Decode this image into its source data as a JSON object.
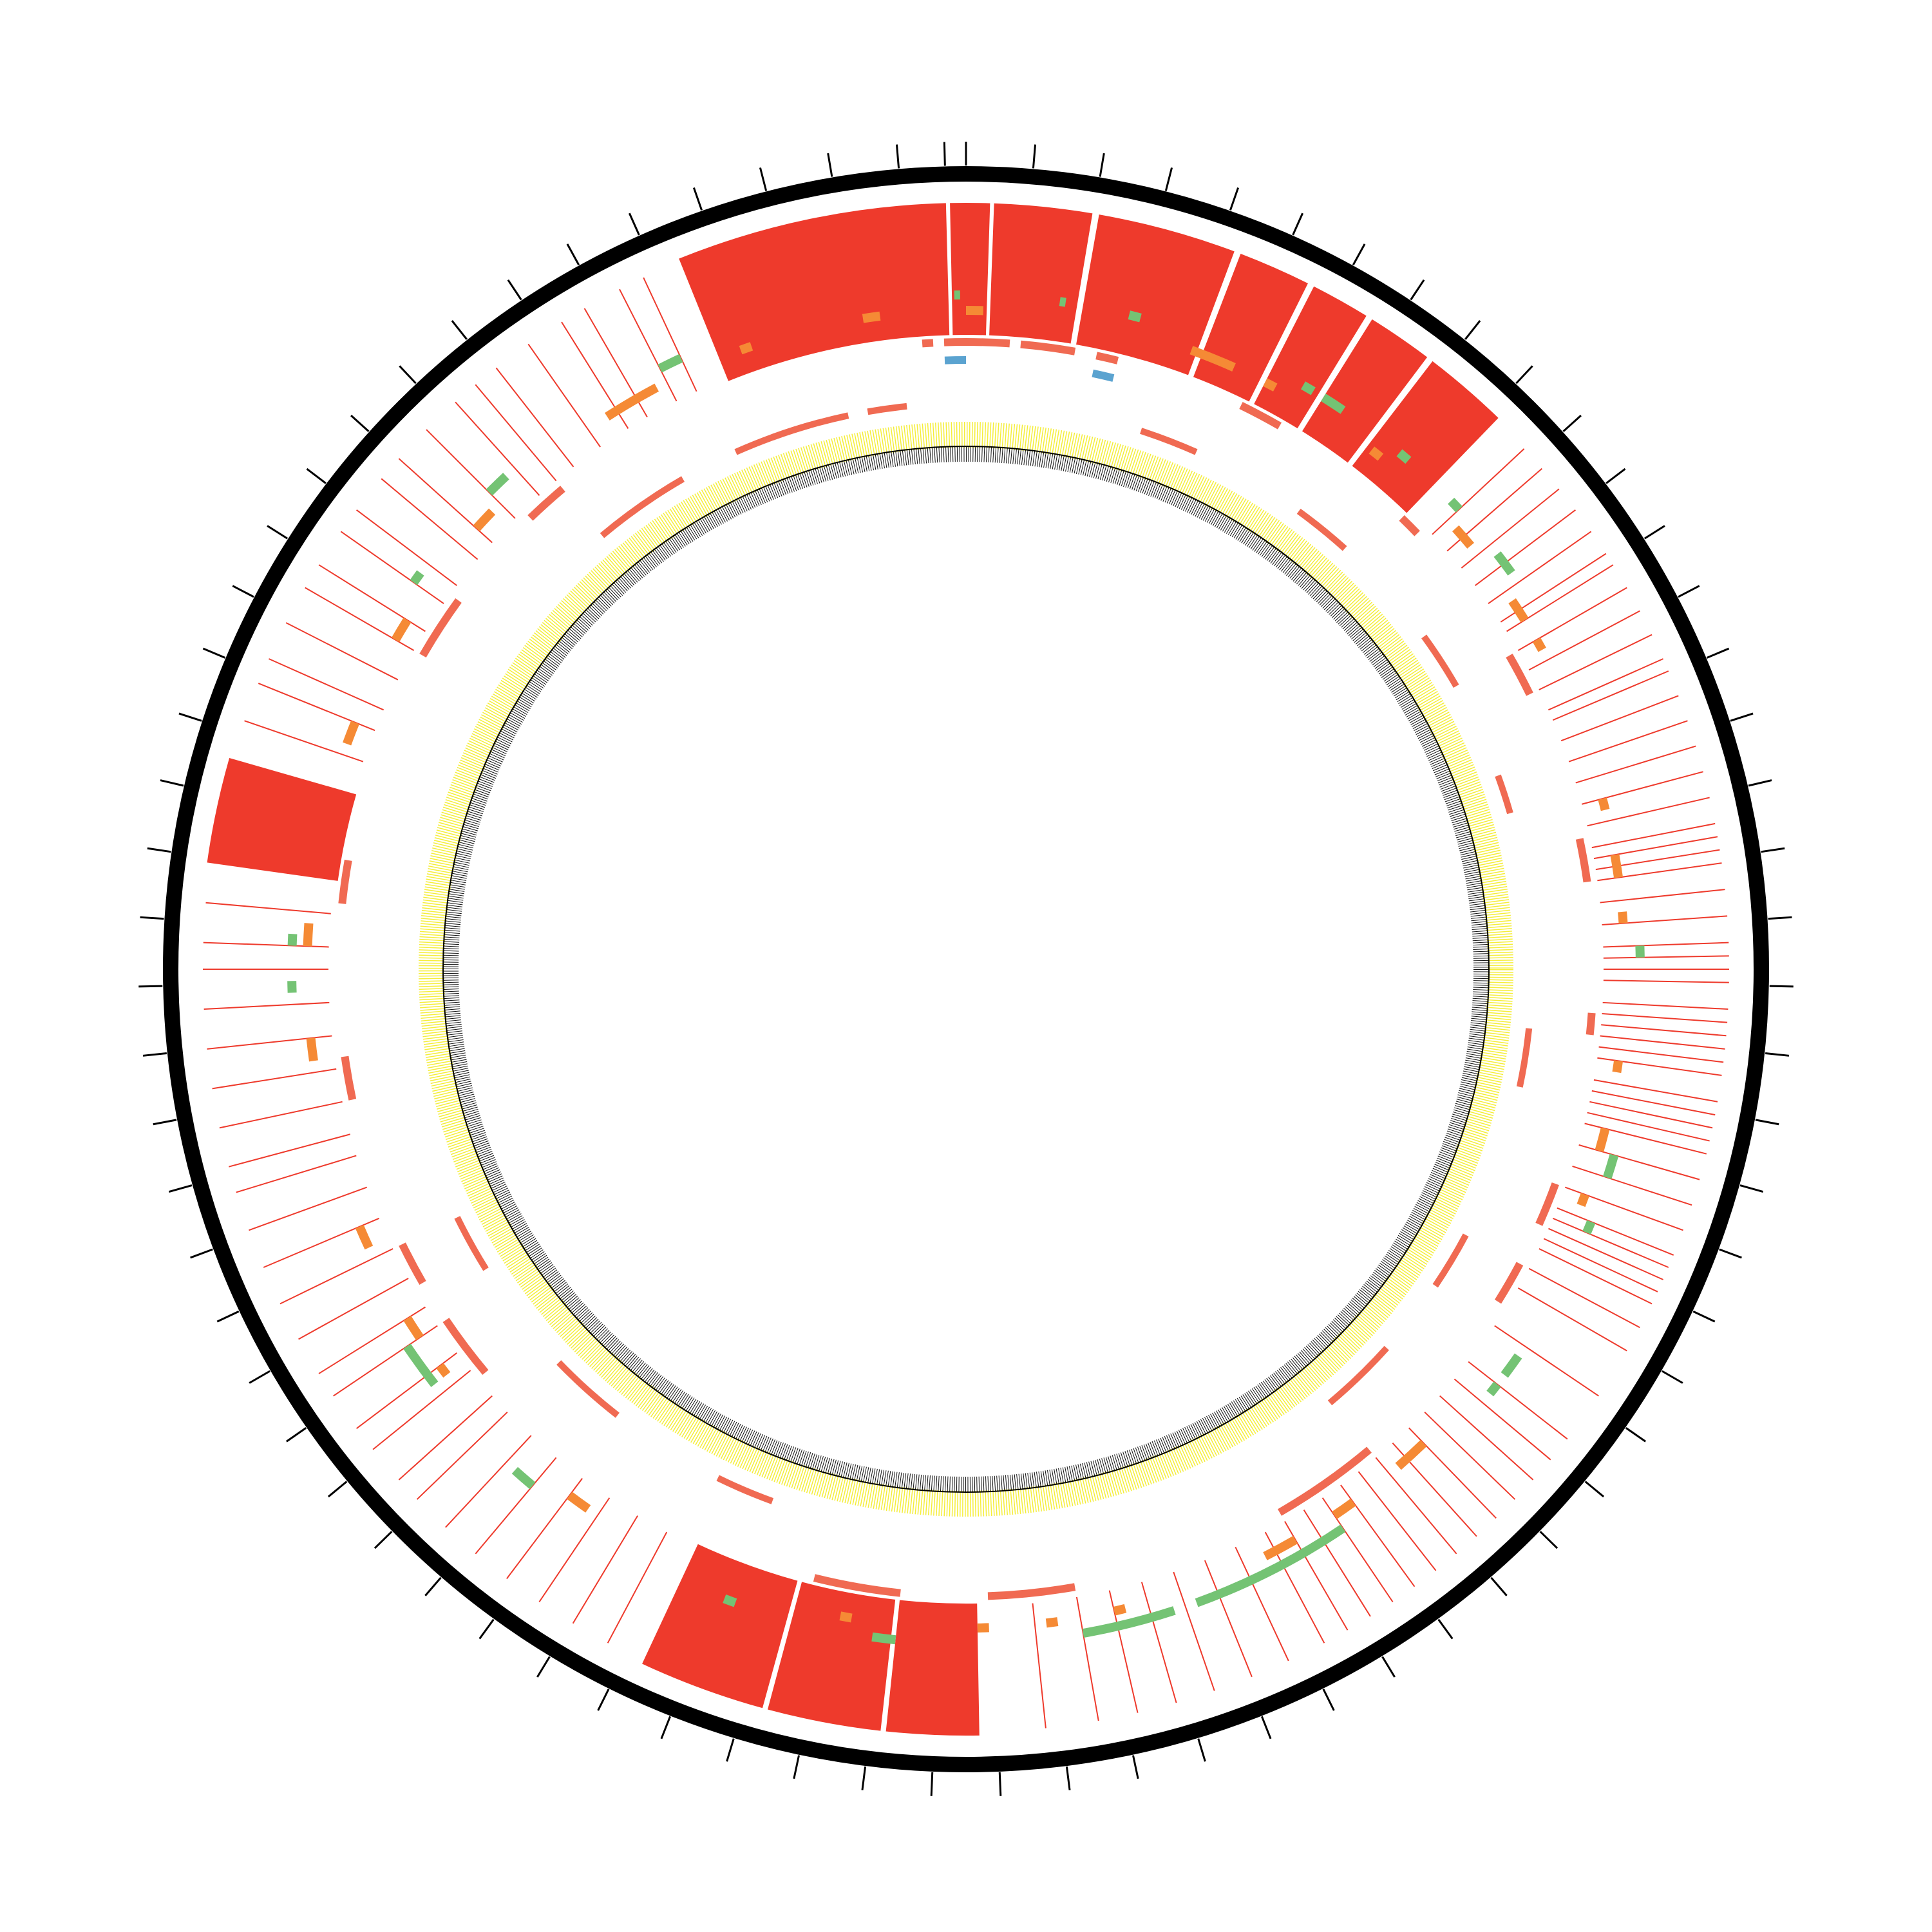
{
  "chart_data": {
    "type": "circos",
    "ideogram_color": "#000000",
    "ticks": [
      -1.5,
      0,
      4.8,
      9.6,
      14.4,
      19.2,
      24,
      28.8,
      33.6,
      38.4,
      43.2,
      48,
      52.8,
      57.6,
      62.4,
      67.2,
      72,
      76.8,
      81.6,
      86.4,
      91.2,
      96,
      100.8,
      105.6,
      110.4,
      115.2,
      120,
      124.8,
      129.6,
      134.4,
      139.2,
      144,
      148.8,
      153.6,
      158.4,
      163.2,
      168,
      172.8,
      177.6,
      182.4,
      187.2,
      192,
      196.8,
      201.6,
      206.4,
      211.2,
      216,
      220.8,
      225.6,
      230.4,
      235.2,
      240,
      244.8,
      249.6,
      254.4,
      259.2,
      264,
      268.8,
      273.6,
      278.4,
      283.2,
      288,
      292.8,
      297.6,
      302.4,
      307.2,
      312,
      316.8,
      321.6,
      326.4,
      331.2,
      336,
      340.8,
      345.6,
      350.4,
      355.2
    ],
    "blocks": {
      "color": "#ee3a2c",
      "spans": [
        [
          -22,
          -1.5
        ],
        [
          -1.2,
          1.8
        ],
        [
          2.1,
          9.5
        ],
        [
          10,
          20.5
        ],
        [
          21,
          26.5
        ],
        [
          27,
          31.5
        ],
        [
          32,
          37
        ],
        [
          37.5,
          44
        ],
        [
          278,
          286
        ],
        [
          179,
          186
        ],
        [
          186.4,
          195
        ],
        [
          195.4,
          205
        ]
      ]
    },
    "lines": {
      "color": "#ee3a2c",
      "angles": [
        47,
        49,
        51,
        53,
        55,
        57,
        58,
        60,
        62,
        64,
        66,
        67,
        69,
        71,
        73,
        75,
        77,
        79,
        80,
        81,
        82,
        84,
        86,
        88,
        89,
        90,
        91,
        93,
        94,
        95,
        96,
        97,
        98,
        100,
        101,
        102,
        103,
        104,
        106,
        108,
        110,
        112,
        113,
        114,
        115,
        116,
        118,
        120,
        124,
        128,
        130,
        132,
        134,
        136,
        138,
        140,
        142,
        144,
        146,
        148,
        150,
        152,
        155,
        158,
        161,
        164,
        167,
        170,
        174,
        208,
        211,
        214,
        217,
        220,
        223,
        226,
        228,
        231,
        233,
        236,
        238,
        241,
        244,
        247,
        250,
        253,
        255,
        258,
        261,
        264,
        267,
        270,
        272,
        275,
        289,
        292,
        294,
        297,
        300,
        302,
        305,
        307,
        310,
        312,
        315,
        318,
        320,
        322,
        325,
        328,
        330,
        333,
        335
      ]
    },
    "features": [
      {
        "color": "#74c374",
        "spans": [
          [
            -1,
            -0.5
          ],
          [
            8,
            8.5
          ],
          [
            14,
            15
          ],
          [
            30,
            31
          ],
          [
            32,
            34
          ],
          [
            40,
            41
          ],
          [
            46,
            47
          ],
          [
            52,
            54
          ],
          [
            88,
            89
          ],
          [
            106,
            108
          ],
          [
            112,
            113
          ],
          [
            125,
            127
          ],
          [
            128,
            129
          ],
          [
            146,
            160
          ],
          [
            162,
            170
          ],
          [
            186,
            188
          ],
          [
            200,
            201
          ],
          [
            220,
            222
          ],
          [
            232,
            236
          ],
          [
            268,
            269
          ],
          [
            272,
            273
          ],
          [
            305,
            306
          ],
          [
            315,
            317
          ],
          [
            333,
            335
          ]
        ]
      },
      {
        "color": "#f58a35",
        "spans": [
          [
            -9,
            -7.5
          ],
          [
            0,
            1.5
          ],
          [
            20,
            24
          ],
          [
            27,
            28
          ],
          [
            38,
            39
          ],
          [
            48,
            50
          ],
          [
            56,
            58
          ],
          [
            60,
            61
          ],
          [
            75,
            76
          ],
          [
            80,
            82
          ],
          [
            85,
            86
          ],
          [
            98,
            99
          ],
          [
            104,
            106
          ],
          [
            110,
            111
          ],
          [
            136,
            139
          ],
          [
            144,
            146
          ],
          [
            150,
            153
          ],
          [
            166,
            167
          ],
          [
            172,
            173
          ],
          [
            178,
            179
          ],
          [
            190,
            191
          ],
          [
            215,
            217
          ],
          [
            232,
            233
          ],
          [
            236,
            238
          ],
          [
            245,
            247
          ],
          [
            262,
            264
          ],
          [
            272,
            274
          ],
          [
            290,
            292
          ],
          [
            300,
            302
          ],
          [
            312,
            314
          ],
          [
            327,
            332
          ],
          [
            340,
            341
          ]
        ]
      },
      {
        "color": "#f06a52",
        "spans": [
          [
            -4,
            -3
          ],
          [
            -2,
            4
          ],
          [
            5,
            10
          ],
          [
            12,
            14
          ],
          [
            26,
            30
          ],
          [
            44,
            46
          ],
          [
            60,
            64
          ],
          [
            78,
            82
          ],
          [
            94,
            96
          ],
          [
            110,
            114
          ],
          [
            118,
            122
          ],
          [
            140,
            150
          ],
          [
            170,
            178
          ],
          [
            186,
            194
          ],
          [
            230,
            236
          ],
          [
            240,
            244
          ],
          [
            258,
            262
          ],
          [
            276,
            280
          ],
          [
            300,
            306
          ],
          [
            316,
            320
          ]
        ]
      },
      {
        "color": "#5ba3d0",
        "spans": [
          [
            -2,
            0
          ],
          [
            12,
            14
          ]
        ]
      },
      {
        "color": "#f06a52",
        "spans": [
          [
            -20,
            -12
          ],
          [
            -10,
            -6
          ],
          [
            18,
            24
          ],
          [
            36,
            42
          ],
          [
            54,
            60
          ],
          [
            70,
            74
          ],
          [
            96,
            102
          ],
          [
            118,
            124
          ],
          [
            132,
            140
          ],
          [
            200,
            206
          ],
          [
            218,
            226
          ],
          [
            238,
            244
          ],
          [
            320,
            330
          ],
          [
            336,
            344
          ]
        ]
      }
    ]
  }
}
